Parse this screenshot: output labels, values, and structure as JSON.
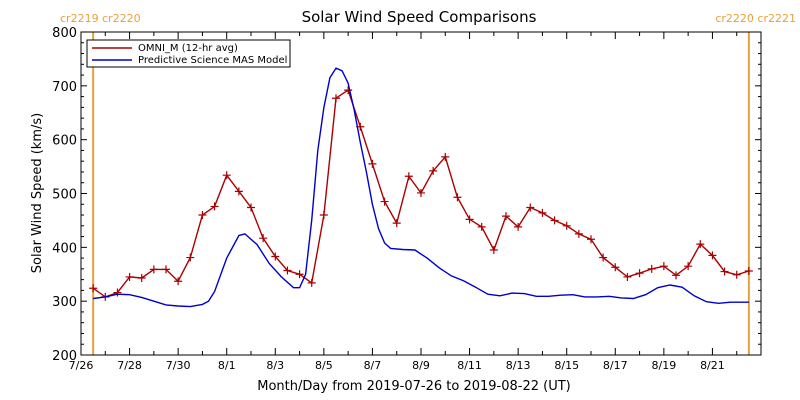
{
  "chart_data": {
    "type": "line",
    "title": "Solar Wind Speed Comparisons",
    "xlabel": "Month/Day from 2019-07-26 to 2019-08-22 (UT)",
    "ylabel": "Solar Wind Speed (km/s)",
    "ylim": [
      200,
      800
    ],
    "yticks": [
      200,
      300,
      400,
      500,
      600,
      700,
      800
    ],
    "xlim": [
      "2019-07-26",
      "2019-08-23"
    ],
    "xtick_labels": [
      {
        "date": "2019-07-26",
        "label": "7/26"
      },
      {
        "date": "2019-07-28",
        "label": "7/28"
      },
      {
        "date": "2019-07-30",
        "label": "7/30"
      },
      {
        "date": "2019-08-01",
        "label": "8/1"
      },
      {
        "date": "2019-08-03",
        "label": "8/3"
      },
      {
        "date": "2019-08-05",
        "label": "8/5"
      },
      {
        "date": "2019-08-07",
        "label": "8/7"
      },
      {
        "date": "2019-08-09",
        "label": "8/9"
      },
      {
        "date": "2019-08-11",
        "label": "8/11"
      },
      {
        "date": "2019-08-13",
        "label": "8/13"
      },
      {
        "date": "2019-08-15",
        "label": "8/15"
      },
      {
        "date": "2019-08-17",
        "label": "8/17"
      },
      {
        "date": "2019-08-19",
        "label": "8/19"
      },
      {
        "date": "2019-08-21",
        "label": "8/21"
      }
    ],
    "grid": false,
    "legend_position": "top-left",
    "carrington_markers": [
      {
        "date": "2019-07-26 12:00",
        "label": "cr2219 cr2220",
        "color": "#e8a13a",
        "side": "left"
      },
      {
        "date": "2019-08-22 12:00",
        "label": "cr2220 cr2221",
        "color": "#e8a13a",
        "side": "right"
      }
    ],
    "series": [
      {
        "name": "OMNI_M (12-hr avg)",
        "color": "#aa0000",
        "marker": "plus",
        "points": [
          [
            "2019-07-26 12:00",
            324
          ],
          [
            "2019-07-27 00:00",
            308
          ],
          [
            "2019-07-27 12:00",
            316
          ],
          [
            "2019-07-28 00:00",
            345
          ],
          [
            "2019-07-28 12:00",
            343
          ],
          [
            "2019-07-29 00:00",
            359
          ],
          [
            "2019-07-29 12:00",
            359
          ],
          [
            "2019-07-30 00:00",
            337
          ],
          [
            "2019-07-30 12:00",
            381
          ],
          [
            "2019-07-31 00:00",
            460
          ],
          [
            "2019-07-31 12:00",
            476
          ],
          [
            "2019-08-01 00:00",
            534
          ],
          [
            "2019-08-01 12:00",
            504
          ],
          [
            "2019-08-02 00:00",
            474
          ],
          [
            "2019-08-02 12:00",
            417
          ],
          [
            "2019-08-03 00:00",
            383
          ],
          [
            "2019-08-03 12:00",
            357
          ],
          [
            "2019-08-04 00:00",
            350
          ],
          [
            "2019-08-04 12:00",
            334
          ],
          [
            "2019-08-05 00:00",
            460
          ],
          [
            "2019-08-05 12:00",
            677
          ],
          [
            "2019-08-06 00:00",
            692
          ],
          [
            "2019-08-06 12:00",
            624
          ],
          [
            "2019-08-07 00:00",
            555
          ],
          [
            "2019-08-07 12:00",
            485
          ],
          [
            "2019-08-08 00:00",
            445
          ],
          [
            "2019-08-08 12:00",
            532
          ],
          [
            "2019-08-09 00:00",
            501
          ],
          [
            "2019-08-09 12:00",
            542
          ],
          [
            "2019-08-10 00:00",
            568
          ],
          [
            "2019-08-10 12:00",
            493
          ],
          [
            "2019-08-11 00:00",
            452
          ],
          [
            "2019-08-11 12:00",
            438
          ],
          [
            "2019-08-12 00:00",
            395
          ],
          [
            "2019-08-12 12:00",
            458
          ],
          [
            "2019-08-13 00:00",
            438
          ],
          [
            "2019-08-13 12:00",
            474
          ],
          [
            "2019-08-14 00:00",
            464
          ],
          [
            "2019-08-14 12:00",
            450
          ],
          [
            "2019-08-15 00:00",
            440
          ],
          [
            "2019-08-15 12:00",
            425
          ],
          [
            "2019-08-16 00:00",
            415
          ],
          [
            "2019-08-16 12:00",
            381
          ],
          [
            "2019-08-17 00:00",
            363
          ],
          [
            "2019-08-17 12:00",
            345
          ],
          [
            "2019-08-18 00:00",
            352
          ],
          [
            "2019-08-18 12:00",
            360
          ],
          [
            "2019-08-19 00:00",
            365
          ],
          [
            "2019-08-19 12:00",
            348
          ],
          [
            "2019-08-20 00:00",
            365
          ],
          [
            "2019-08-20 12:00",
            406
          ],
          [
            "2019-08-21 00:00",
            385
          ],
          [
            "2019-08-21 12:00",
            355
          ],
          [
            "2019-08-22 00:00",
            349
          ],
          [
            "2019-08-22 12:00",
            356
          ]
        ]
      },
      {
        "name": "Predictive Science MAS Model",
        "color": "#0000cc",
        "marker": "none",
        "points": [
          [
            "2019-07-26 12:00",
            305
          ],
          [
            "2019-07-27 00:00",
            308
          ],
          [
            "2019-07-27 12:00",
            313
          ],
          [
            "2019-07-28 00:00",
            312
          ],
          [
            "2019-07-28 12:00",
            307
          ],
          [
            "2019-07-29 00:00",
            300
          ],
          [
            "2019-07-29 12:00",
            293
          ],
          [
            "2019-07-30 00:00",
            291
          ],
          [
            "2019-07-30 12:00",
            290
          ],
          [
            "2019-07-31 00:00",
            294
          ],
          [
            "2019-07-31 06:00",
            300
          ],
          [
            "2019-07-31 12:00",
            318
          ],
          [
            "2019-08-01 00:00",
            380
          ],
          [
            "2019-08-01 12:00",
            422
          ],
          [
            "2019-08-01 18:00",
            425
          ],
          [
            "2019-08-02 06:00",
            405
          ],
          [
            "2019-08-02 18:00",
            370
          ],
          [
            "2019-08-03 06:00",
            345
          ],
          [
            "2019-08-03 18:00",
            325
          ],
          [
            "2019-08-04 00:00",
            325
          ],
          [
            "2019-08-04 06:00",
            350
          ],
          [
            "2019-08-04 12:00",
            450
          ],
          [
            "2019-08-04 18:00",
            580
          ],
          [
            "2019-08-05 00:00",
            660
          ],
          [
            "2019-08-05 06:00",
            715
          ],
          [
            "2019-08-05 12:00",
            733
          ],
          [
            "2019-08-05 18:00",
            728
          ],
          [
            "2019-08-06 00:00",
            705
          ],
          [
            "2019-08-06 06:00",
            655
          ],
          [
            "2019-08-06 12:00",
            595
          ],
          [
            "2019-08-06 18:00",
            540
          ],
          [
            "2019-08-07 00:00",
            480
          ],
          [
            "2019-08-07 06:00",
            435
          ],
          [
            "2019-08-07 12:00",
            408
          ],
          [
            "2019-08-07 18:00",
            398
          ],
          [
            "2019-08-08 06:00",
            396
          ],
          [
            "2019-08-08 18:00",
            395
          ],
          [
            "2019-08-09 06:00",
            380
          ],
          [
            "2019-08-09 18:00",
            362
          ],
          [
            "2019-08-10 06:00",
            347
          ],
          [
            "2019-08-10 18:00",
            338
          ],
          [
            "2019-08-11 06:00",
            326
          ],
          [
            "2019-08-11 18:00",
            313
          ],
          [
            "2019-08-12 06:00",
            310
          ],
          [
            "2019-08-12 18:00",
            315
          ],
          [
            "2019-08-13 06:00",
            314
          ],
          [
            "2019-08-13 18:00",
            309
          ],
          [
            "2019-08-14 06:00",
            309
          ],
          [
            "2019-08-14 18:00",
            311
          ],
          [
            "2019-08-15 06:00",
            312
          ],
          [
            "2019-08-15 18:00",
            308
          ],
          [
            "2019-08-16 06:00",
            308
          ],
          [
            "2019-08-16 18:00",
            309
          ],
          [
            "2019-08-17 06:00",
            306
          ],
          [
            "2019-08-17 18:00",
            305
          ],
          [
            "2019-08-18 06:00",
            312
          ],
          [
            "2019-08-18 18:00",
            325
          ],
          [
            "2019-08-19 06:00",
            330
          ],
          [
            "2019-08-19 18:00",
            326
          ],
          [
            "2019-08-20 06:00",
            310
          ],
          [
            "2019-08-20 18:00",
            299
          ],
          [
            "2019-08-21 06:00",
            296
          ],
          [
            "2019-08-21 18:00",
            298
          ],
          [
            "2019-08-22 06:00",
            298
          ],
          [
            "2019-08-22 12:00",
            298
          ]
        ]
      }
    ]
  }
}
